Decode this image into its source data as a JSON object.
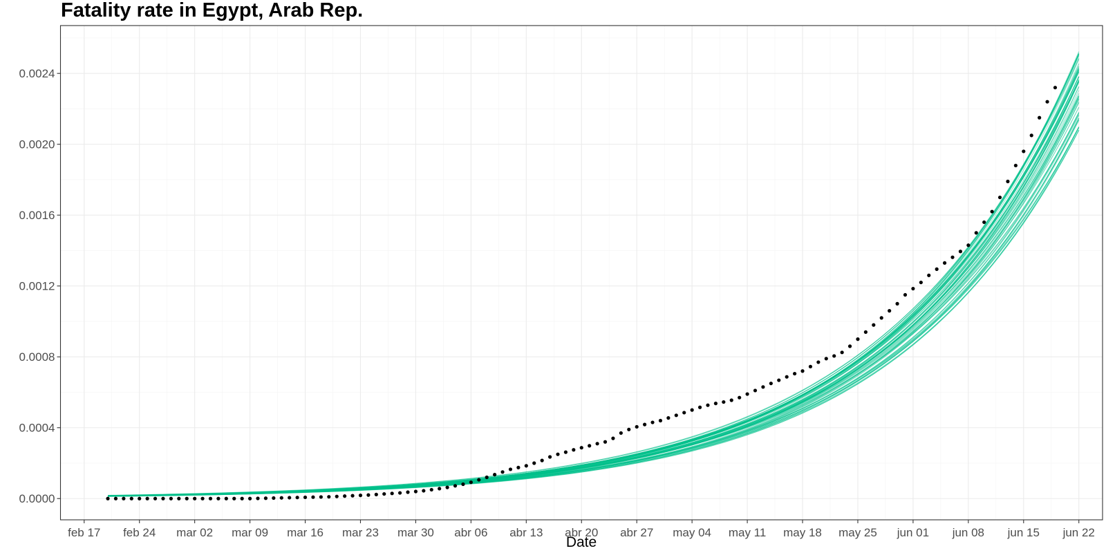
{
  "chart_data": {
    "type": "line",
    "title": "Fatality rate in  Egypt, Arab Rep.",
    "xlabel": "Date",
    "ylabel": "",
    "x_type": "date",
    "xlim": [
      "2020-02-14",
      "2020-06-25"
    ],
    "ylim": [
      -0.00012,
      0.00267
    ],
    "x_ticks": [
      {
        "date": "2020-02-17",
        "label": "feb 17"
      },
      {
        "date": "2020-02-24",
        "label": "feb 24"
      },
      {
        "date": "2020-03-02",
        "label": "mar 02"
      },
      {
        "date": "2020-03-09",
        "label": "mar 09"
      },
      {
        "date": "2020-03-16",
        "label": "mar 16"
      },
      {
        "date": "2020-03-23",
        "label": "mar 23"
      },
      {
        "date": "2020-03-30",
        "label": "mar 30"
      },
      {
        "date": "2020-04-06",
        "label": "abr 06"
      },
      {
        "date": "2020-04-13",
        "label": "abr 13"
      },
      {
        "date": "2020-04-20",
        "label": "abr 20"
      },
      {
        "date": "2020-04-27",
        "label": "abr 27"
      },
      {
        "date": "2020-05-04",
        "label": "may 04"
      },
      {
        "date": "2020-05-11",
        "label": "may 11"
      },
      {
        "date": "2020-05-18",
        "label": "may 18"
      },
      {
        "date": "2020-05-25",
        "label": "may 25"
      },
      {
        "date": "2020-06-01",
        "label": "jun 01"
      },
      {
        "date": "2020-06-08",
        "label": "jun 08"
      },
      {
        "date": "2020-06-15",
        "label": "jun 15"
      },
      {
        "date": "2020-06-22",
        "label": "jun 22"
      }
    ],
    "y_ticks": [
      {
        "value": 0.0,
        "label": "0.0000"
      },
      {
        "value": 0.0004,
        "label": "0.0004"
      },
      {
        "value": 0.0008,
        "label": "0.0008"
      },
      {
        "value": 0.0012,
        "label": "0.0012"
      },
      {
        "value": 0.0016,
        "label": "0.0016"
      },
      {
        "value": 0.002,
        "label": "0.0020"
      },
      {
        "value": 0.0024,
        "label": "0.0024"
      }
    ],
    "grid": true,
    "legend": "none",
    "observed": {
      "color": "#000000",
      "start_date": "2020-02-20",
      "values": [
        0.0,
        0.0,
        0.0,
        0.0,
        0.0,
        0.0,
        0.0,
        0.0,
        0.0,
        0.0,
        0.0,
        0.0,
        0.0,
        0.0,
        0.0,
        0.0,
        0.0,
        0.0,
        0.0,
        1e-06,
        2e-06,
        3e-06,
        4e-06,
        5e-06,
        6e-06,
        7e-06,
        8e-06,
        9e-06,
        1e-05,
        1.2e-05,
        1.4e-05,
        1.6e-05,
        1.8e-05,
        2e-05,
        2.3e-05,
        2.6e-05,
        2.9e-05,
        3.2e-05,
        3.6e-05,
        4e-05,
        4.4e-05,
        5e-05,
        5.6e-05,
        6.3e-05,
        7.2e-05,
        8.1e-05,
        9.2e-05,
        0.000106,
        0.00012,
        0.000135,
        0.00015,
        0.000165,
        0.000175,
        0.000185,
        0.0002,
        0.000215,
        0.000235,
        0.00025,
        0.000262,
        0.000275,
        0.000287,
        0.000298,
        0.00031,
        0.00032,
        0.00034,
        0.00037,
        0.00039,
        0.000405,
        0.000418,
        0.00043,
        0.00044,
        0.000455,
        0.00047,
        0.000485,
        0.0005,
        0.000515,
        0.000527,
        0.000537,
        0.000545,
        0.000555,
        0.00057,
        0.00059,
        0.00061,
        0.00063,
        0.00065,
        0.000668,
        0.000687,
        0.000705,
        0.00072,
        0.000745,
        0.00077,
        0.00079,
        0.000805,
        0.000825,
        0.00086,
        0.0009,
        0.00094,
        0.00098,
        0.00102,
        0.00106,
        0.0011,
        0.00115,
        0.001185,
        0.00122,
        0.00126,
        0.001295,
        0.00133,
        0.001362,
        0.001395,
        0.00143,
        0.0015,
        0.00156,
        0.00162,
        0.0017,
        0.00179,
        0.00188,
        0.00196,
        0.00205,
        0.00215,
        0.00224,
        0.00232
      ]
    },
    "simulations": {
      "color": "#00c08b",
      "count": 50,
      "start_date": "2020-02-20",
      "end_date": "2020-06-22",
      "end_value_min": 0.00208,
      "end_value_max": 0.00253,
      "model": "A * exp(k * days_since_start)",
      "k_min": 0.04,
      "k_max": 0.042
    }
  }
}
